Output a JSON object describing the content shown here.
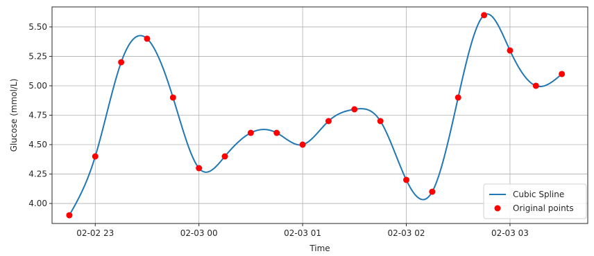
{
  "chart_data": {
    "type": "line",
    "title": "",
    "xlabel": "Time",
    "ylabel": "Glucose (mmol/L)",
    "x_unit": "datetime",
    "xlim": [
      "2023-02-02 22:35",
      "2023-02-03 03:45"
    ],
    "ylim": [
      3.83,
      5.67
    ],
    "x_ticks": [
      {
        "value": "2023-02-02 23:00",
        "label": "02-02 23"
      },
      {
        "value": "2023-02-03 00:00",
        "label": "02-03 00"
      },
      {
        "value": "2023-02-03 01:00",
        "label": "02-03 01"
      },
      {
        "value": "2023-02-03 02:00",
        "label": "02-03 02"
      },
      {
        "value": "2023-02-03 03:00",
        "label": "02-03 03"
      }
    ],
    "y_ticks": [
      {
        "value": 4.0,
        "label": "4.00"
      },
      {
        "value": 4.25,
        "label": "4.25"
      },
      {
        "value": 4.5,
        "label": "4.50"
      },
      {
        "value": 4.75,
        "label": "4.75"
      },
      {
        "value": 5.0,
        "label": "5.00"
      },
      {
        "value": 5.25,
        "label": "5.25"
      },
      {
        "value": 5.5,
        "label": "5.50"
      }
    ],
    "grid": true,
    "legend_position": "bottom-right",
    "series": [
      {
        "name": "Cubic Spline",
        "kind": "line",
        "color": "#1f77b4",
        "interpolation": "cubic-spline",
        "source": "Original points"
      },
      {
        "name": "Original points",
        "kind": "scatter",
        "color": "#ff0000",
        "x": [
          "2023-02-02 22:45",
          "2023-02-02 23:00",
          "2023-02-02 23:15",
          "2023-02-02 23:30",
          "2023-02-02 23:45",
          "2023-02-03 00:00",
          "2023-02-03 00:15",
          "2023-02-03 00:30",
          "2023-02-03 00:45",
          "2023-02-03 01:00",
          "2023-02-03 01:15",
          "2023-02-03 01:30",
          "2023-02-03 01:45",
          "2023-02-03 02:00",
          "2023-02-03 02:15",
          "2023-02-03 02:30",
          "2023-02-03 02:45",
          "2023-02-03 03:00",
          "2023-02-03 03:15",
          "2023-02-03 03:30"
        ],
        "y": [
          3.9,
          4.4,
          5.2,
          5.4,
          4.9,
          4.3,
          4.4,
          4.6,
          4.6,
          4.5,
          4.7,
          4.8,
          4.7,
          4.2,
          4.1,
          4.9,
          5.6,
          5.3,
          5.0,
          5.1
        ]
      }
    ]
  }
}
